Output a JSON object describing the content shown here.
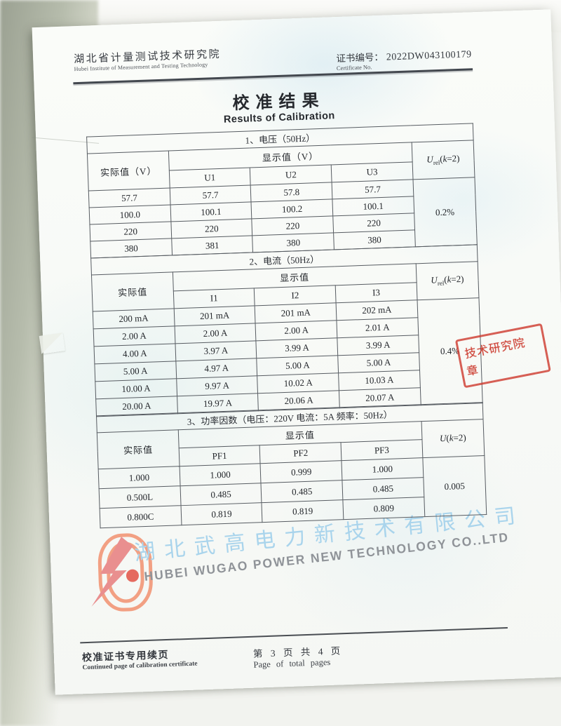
{
  "header": {
    "org_cn": "湖北省计量测试技术研究院",
    "org_en": "Hubei Institute of Measurement and Testing Technology",
    "cert_label_cn": "证书编号：",
    "cert_no": "2022DW043100179",
    "cert_label_en": "Certificate No."
  },
  "title": {
    "cn": "校准结果",
    "en": "Results of Calibration"
  },
  "tables": [
    {
      "section_title": "1、电压（50Hz）",
      "actual_header": "实际值（V）",
      "display_header": "显示值（V）",
      "sub_headers": [
        "U1",
        "U2",
        "U3"
      ],
      "uncertainty_sym": "U",
      "uncertainty_sub": "rel",
      "uncertainty_open": "(",
      "uncertainty_k": "k",
      "uncertainty_close": "=2)",
      "rows": [
        [
          "57.7",
          "57.7",
          "57.8",
          "57.7"
        ],
        [
          "100.0",
          "100.1",
          "100.2",
          "100.1"
        ],
        [
          "220",
          "220",
          "220",
          "220"
        ],
        [
          "380",
          "381",
          "380",
          "380"
        ]
      ],
      "uncertainty_value": "0.2%"
    },
    {
      "section_title": "2、电流（50Hz）",
      "actual_header": "实际值",
      "display_header": "显示值",
      "sub_headers": [
        "I1",
        "I2",
        "I3"
      ],
      "uncertainty_sym": "U",
      "uncertainty_sub": "rel",
      "uncertainty_open": "(",
      "uncertainty_k": "k",
      "uncertainty_close": "=2)",
      "rows": [
        [
          "200 mA",
          "201 mA",
          "201 mA",
          "202 mA"
        ],
        [
          "2.00 A",
          "2.00 A",
          "2.00 A",
          "2.01 A"
        ],
        [
          "4.00 A",
          "3.97 A",
          "3.99 A",
          "3.99 A"
        ],
        [
          "5.00 A",
          "4.97 A",
          "5.00 A",
          "5.00 A"
        ],
        [
          "10.00 A",
          "9.97 A",
          "10.02 A",
          "10.03 A"
        ],
        [
          "20.00 A",
          "19.97 A",
          "20.06 A",
          "20.07 A"
        ]
      ],
      "uncertainty_value": "0.4%"
    },
    {
      "section_title": "3、功率因数（电压：220V  电流：5A  频率：50Hz）",
      "actual_header": "实际值",
      "display_header": "显示值",
      "sub_headers": [
        "PF1",
        "PF2",
        "PF3"
      ],
      "uncertainty_sym": "U",
      "uncertainty_sub": "",
      "uncertainty_open": "(",
      "uncertainty_k": "k",
      "uncertainty_close": "=2)",
      "rows": [
        [
          "1.000",
          "1.000",
          "0.999",
          "1.000"
        ],
        [
          "0.500L",
          "0.485",
          "0.485",
          "0.485"
        ],
        [
          "0.800C",
          "0.819",
          "0.819",
          "0.809"
        ]
      ],
      "uncertainty_value": "0.005"
    }
  ],
  "watermark": {
    "cn": "湖北武高电力新技术有限公司",
    "en": "HUBEI WUGAO POWER NEW TECHNOLOGY CO..LTD",
    "blue": "#a9d4ec",
    "gray": "#8f9398",
    "logo_coil_color": "#f2a083",
    "logo_bolt_color": "#e98f8f"
  },
  "stamp": {
    "line1": "技术研究院",
    "line2": "章",
    "color": "#cb3528"
  },
  "footer": {
    "left_cn": "校准证书专用续页",
    "left_en": "Continued page of calibration certificate",
    "page_cn": "第 3 页 共 4 页",
    "page_en": "Page of total pages"
  }
}
